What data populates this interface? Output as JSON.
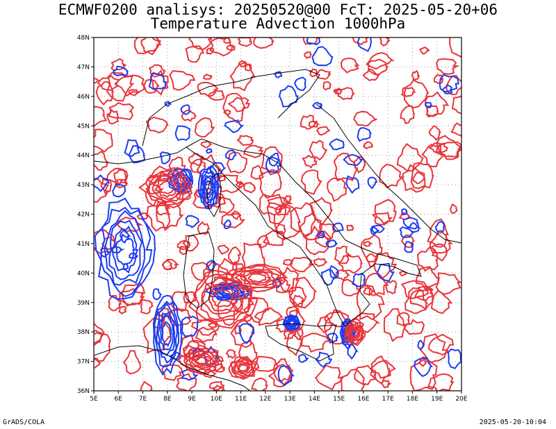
{
  "title": {
    "line1": "ECMWF0200 analisys: 20250520@00 FcT: 2025-05-20+06",
    "line2": "Temperature Advection 1000hPa"
  },
  "axes": {
    "lon_labels": [
      "5E",
      "6E",
      "7E",
      "8E",
      "9E",
      "10E",
      "11E",
      "12E",
      "13E",
      "14E",
      "15E",
      "16E",
      "17E",
      "18E",
      "19E",
      "20E"
    ],
    "lat_labels": [
      "48N",
      "47N",
      "46N",
      "45N",
      "44N",
      "43N",
      "42N",
      "41N",
      "40N",
      "39N",
      "38N",
      "37N",
      "36N"
    ],
    "lon_range": [
      5,
      20
    ],
    "lat_range": [
      36,
      48
    ],
    "grid": true
  },
  "colors": {
    "warm_advection": "#e8343a",
    "cold_advection": "#1c3cf0",
    "coastline": "#000000",
    "grid": "#9a9a9a"
  },
  "footer": {
    "left": "GrADS/COLA",
    "right": "2025-05-20-10:04"
  }
}
